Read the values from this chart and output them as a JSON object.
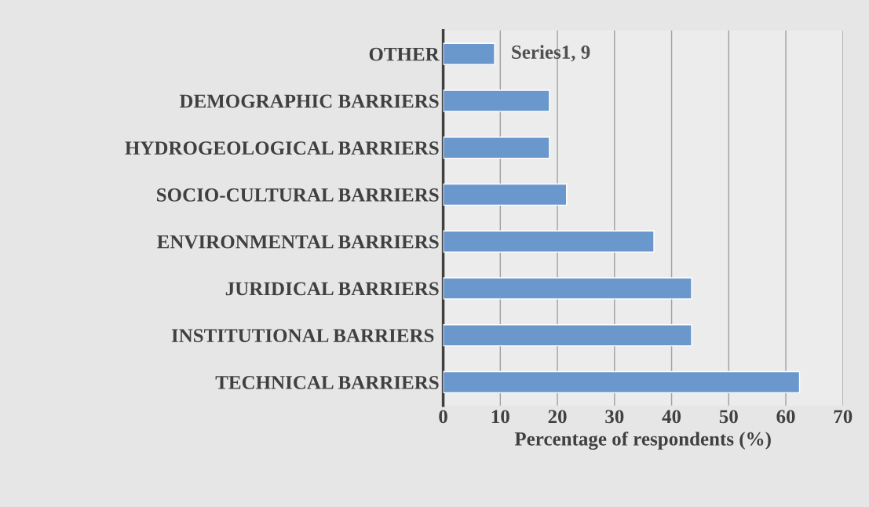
{
  "chart_data": {
    "type": "bar",
    "orientation": "horizontal",
    "categories": [
      "OTHER",
      "DEMOGRAPHIC BARRIERS",
      "HYDROGEOLOGICAL BARRIERS",
      "SOCIO-CULTURAL BARRIERS",
      "ENVIRONMENTAL BARRIERS",
      "JURIDICAL BARRIERS",
      "INSTITUTIONAL BARRIERS ",
      "TECHNICAL BARRIERS"
    ],
    "values": [
      9,
      18.6,
      18.6,
      21.6,
      36.9,
      43.5,
      43.5,
      62.4
    ],
    "value_labels": [
      "Series1, 9",
      null,
      null,
      null,
      null,
      null,
      null,
      null
    ],
    "color": "#6a97cc",
    "xlabel": "Percentage of respondents (%)",
    "xlim": [
      0,
      70
    ],
    "xticks": [
      0,
      10,
      20,
      30,
      40,
      50,
      60,
      70
    ],
    "grid": "x",
    "legend": false
  }
}
